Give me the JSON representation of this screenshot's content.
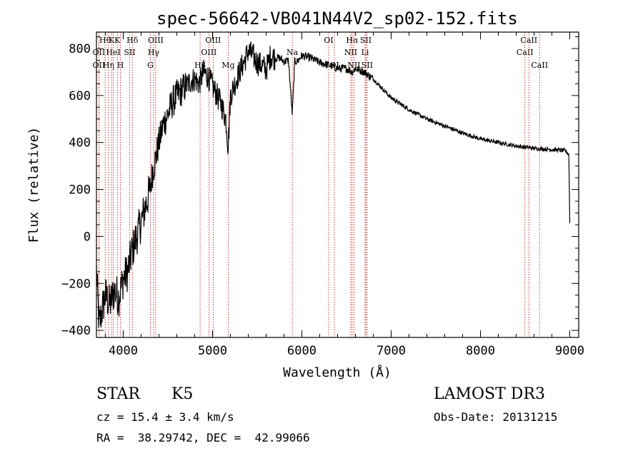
{
  "chart_data": {
    "type": "line",
    "title": "spec-56642-VB041N44V2_sp02-152.fits",
    "xlabel": "Wavelength (Å)",
    "ylabel": "Flux (relative)",
    "xlim": [
      3700,
      9100
    ],
    "ylim": [
      -430,
      870
    ],
    "xticks": [
      4000,
      5000,
      6000,
      7000,
      8000,
      9000
    ],
    "yticks": [
      -400,
      -200,
      0,
      200,
      400,
      600,
      800
    ],
    "series": [
      {
        "name": "spectrum",
        "x": [
          3700,
          3730,
          3760,
          3800,
          3850,
          3900,
          3950,
          4000,
          4050,
          4100,
          4150,
          4200,
          4250,
          4300,
          4330,
          4350,
          4400,
          4450,
          4500,
          4550,
          4600,
          4650,
          4700,
          4750,
          4800,
          4850,
          4900,
          4950,
          5000,
          5050,
          5100,
          5150,
          5175,
          5200,
          5250,
          5300,
          5350,
          5400,
          5450,
          5500,
          5550,
          5600,
          5650,
          5700,
          5750,
          5800,
          5850,
          5893,
          5920,
          5950,
          6000,
          6100,
          6200,
          6300,
          6400,
          6500,
          6563,
          6600,
          6700,
          6800,
          6900,
          7000,
          7200,
          7400,
          7600,
          7800,
          8000,
          8200,
          8400,
          8600,
          8800,
          8950,
          8990,
          9000
        ],
        "y": [
          -150,
          -380,
          -320,
          -250,
          -290,
          -230,
          -260,
          -180,
          -150,
          -60,
          0,
          60,
          130,
          200,
          280,
          310,
          400,
          480,
          520,
          570,
          600,
          620,
          640,
          660,
          670,
          650,
          700,
          680,
          640,
          600,
          560,
          500,
          380,
          600,
          650,
          700,
          740,
          790,
          770,
          740,
          730,
          710,
          770,
          760,
          760,
          745,
          750,
          520,
          745,
          745,
          770,
          760,
          740,
          730,
          715,
          715,
          700,
          715,
          700,
          670,
          630,
          590,
          540,
          500,
          470,
          440,
          415,
          400,
          385,
          375,
          370,
          365,
          350,
          60
        ]
      }
    ],
    "line_markers": [
      {
        "wavelength": 3727,
        "label": "OII",
        "row": 2
      },
      {
        "wavelength": 3727,
        "label": "OII",
        "row": 1
      },
      {
        "wavelength": 3797,
        "label": "Hθ",
        "row": 0
      },
      {
        "wavelength": 3835,
        "label": "Hη",
        "row": 2
      },
      {
        "wavelength": 3869,
        "label": "K",
        "row": 0
      },
      {
        "wavelength": 3889,
        "label": "HeI",
        "row": 1
      },
      {
        "wavelength": 3934,
        "label": "K",
        "row": 0
      },
      {
        "wavelength": 3968,
        "label": "H",
        "row": 2
      },
      {
        "wavelength": 4072,
        "label": "SII",
        "row": 1
      },
      {
        "wavelength": 4102,
        "label": "Hδ",
        "row": 0
      },
      {
        "wavelength": 4304,
        "label": "G",
        "row": 2
      },
      {
        "wavelength": 4340,
        "label": "Hγ",
        "row": 1
      },
      {
        "wavelength": 4363,
        "label": "OIII",
        "row": 0
      },
      {
        "wavelength": 4861,
        "label": "Hβ",
        "row": 2
      },
      {
        "wavelength": 4959,
        "label": "OIII",
        "row": 1
      },
      {
        "wavelength": 5007,
        "label": "OIII",
        "row": 0
      },
      {
        "wavelength": 5175,
        "label": "Mg",
        "row": 2
      },
      {
        "wavelength": 5893,
        "label": "Na",
        "row": 1
      },
      {
        "wavelength": 6300,
        "label": "OI",
        "row": 0
      },
      {
        "wavelength": 6364,
        "label": "OI",
        "row": 2
      },
      {
        "wavelength": 6548,
        "label": "NII",
        "row": 1
      },
      {
        "wavelength": 6563,
        "label": "Hα",
        "row": 0
      },
      {
        "wavelength": 6583,
        "label": "NII",
        "row": 2
      },
      {
        "wavelength": 6708,
        "label": "Li",
        "row": 1
      },
      {
        "wavelength": 6716,
        "label": "SII",
        "row": 0
      },
      {
        "wavelength": 6731,
        "label": "SII",
        "row": 2
      },
      {
        "wavelength": 8498,
        "label": "CaII",
        "row": 1
      },
      {
        "wavelength": 8542,
        "label": "CaII",
        "row": 0
      },
      {
        "wavelength": 8662,
        "label": "CaII",
        "row": 2
      }
    ]
  },
  "info": {
    "class": "STAR",
    "subclass": "K5",
    "survey": "LAMOST DR3",
    "cz": "cz = 15.4 ± 3.4 km/s",
    "obs_date": "Obs-Date: 20131215",
    "radec": "RA =  38.29742, DEC =  42.99066"
  },
  "colors": {
    "spectrum": "#000000",
    "marker_line": "#c00000",
    "axes": "#000000"
  }
}
